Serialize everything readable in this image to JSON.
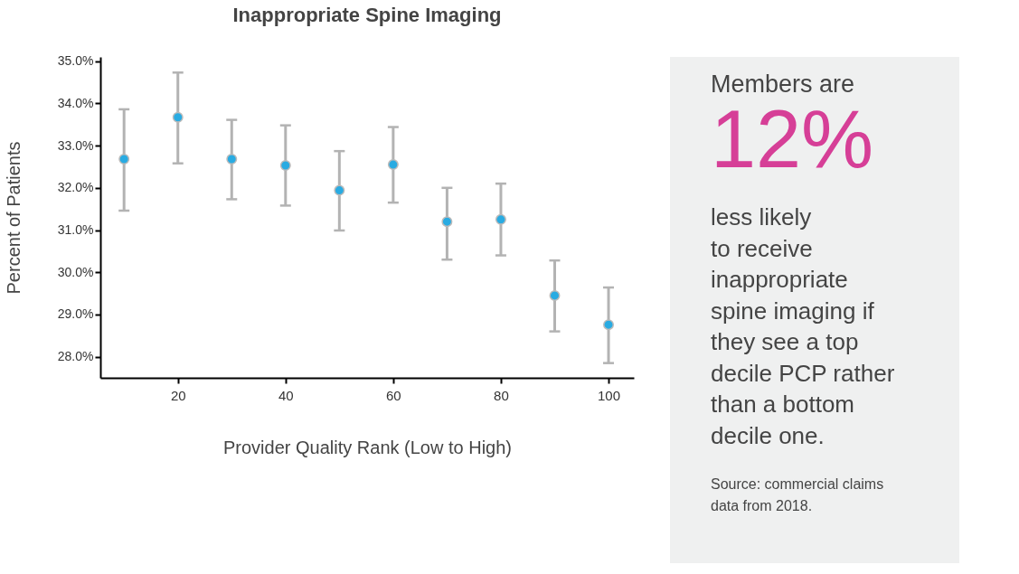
{
  "chart_data": [
    {
      "type": "scatter",
      "title": "Inappropriate Spine Imaging",
      "xlabel": "Provider Quality Rank (Low to High)",
      "ylabel": "Percent of Patients",
      "x": [
        10,
        20,
        30,
        40,
        50,
        60,
        70,
        80,
        90,
        100
      ],
      "color": "#29abe2",
      "values": [
        32.68,
        33.67,
        32.68,
        32.53,
        31.94,
        32.55,
        31.2,
        31.25,
        29.45,
        28.76
      ],
      "errors": [
        [
          31.46,
          33.86
        ],
        [
          32.58,
          34.73
        ],
        [
          31.73,
          33.61
        ],
        [
          31.58,
          33.48
        ],
        [
          30.99,
          32.87
        ],
        [
          31.65,
          33.44
        ],
        [
          30.3,
          32.0
        ],
        [
          30.4,
          32.1
        ],
        [
          28.6,
          30.28
        ],
        [
          27.85,
          29.64
        ]
      ],
      "xlim": [
        5.6,
        104.7
      ],
      "ylim": [
        27.5,
        35.1
      ],
      "xticks": [
        20,
        40,
        60,
        80,
        100
      ],
      "yticks": [
        {
          "value": 28,
          "label": "28.0%"
        },
        {
          "value": 29,
          "label": "29.0%"
        },
        {
          "value": 30,
          "label": "30.0%"
        },
        {
          "value": 31,
          "label": "31.0%"
        },
        {
          "value": 32,
          "label": "32.0%"
        },
        {
          "value": 33,
          "label": "33.0%"
        },
        {
          "value": 34,
          "label": "34.0%"
        },
        {
          "value": 35,
          "label": "35.0%"
        }
      ],
      "grid": false,
      "marker": "circle"
    },
    {
      "type": "other",
      "annotations": [
        "Members are",
        "12%",
        "less likely\nto receive\ninappropriate\nspine imaging if\nthey see a top\ndecile PCP rather\nthan a bottom\ndecile one.",
        "Source: commercial claims\ndata from 2018."
      ]
    }
  ]
}
